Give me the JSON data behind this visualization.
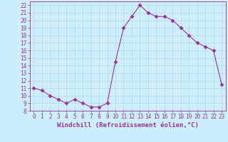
{
  "x": [
    0,
    1,
    2,
    3,
    4,
    5,
    6,
    7,
    8,
    9,
    10,
    11,
    12,
    13,
    14,
    15,
    16,
    17,
    18,
    19,
    20,
    21,
    22,
    23
  ],
  "y": [
    11,
    10.7,
    10,
    9.5,
    9,
    9.5,
    9,
    8.5,
    8.5,
    9,
    14.5,
    19,
    20.5,
    22,
    21,
    20.5,
    20.5,
    20,
    19,
    18,
    17,
    16.5,
    16,
    11.5
  ],
  "line_color": "#993399",
  "marker": "D",
  "marker_size": 2.5,
  "bg_color": "#cceeff",
  "grid_color": "#bbdddd",
  "xlabel": "Windchill (Refroidissement éolien,°C)",
  "xlabel_color": "#993399",
  "tick_color": "#993399",
  "ylim": [
    8,
    22.5
  ],
  "xlim": [
    -0.5,
    23.5
  ],
  "yticks": [
    8,
    9,
    10,
    11,
    12,
    13,
    14,
    15,
    16,
    17,
    18,
    19,
    20,
    21,
    22
  ],
  "xticks": [
    0,
    1,
    2,
    3,
    4,
    5,
    6,
    7,
    8,
    9,
    10,
    11,
    12,
    13,
    14,
    15,
    16,
    17,
    18,
    19,
    20,
    21,
    22,
    23
  ],
  "tick_fontsize": 5.5,
  "xlabel_fontsize": 6.5
}
